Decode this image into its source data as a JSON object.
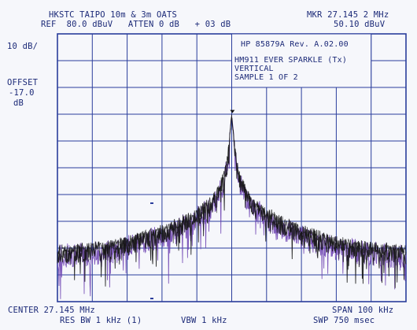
{
  "header": {
    "title": "HKSTC TAIPO 10m & 3m OATS",
    "ref_line": "REF  80.0 dBuV   ATTEN 0 dB   + 03 dB",
    "marker_freq": "MKR 27.145 2 MHz",
    "marker_level": "50.10 dBuV"
  },
  "left_panel": {
    "scale": "10 dB/",
    "offset_label": "OFFSET",
    "offset_value": "-17.0",
    "offset_unit": "dB"
  },
  "info_box": {
    "model": "HP 85879A Rev. A.02.00",
    "line1": "HM911 EVER SPARKLE (Tx)",
    "line2": "VERTICAL",
    "line3": "SAMPLE 1 OF 2"
  },
  "footer": {
    "center": "CENTER 27.145 MHz",
    "span": "SPAN 100 kHz",
    "res_bw": "RES BW 1 kHz (1)",
    "vbw": "VBW 1 kHz",
    "sweep": "SWP 750 msec"
  },
  "colors": {
    "grid": "#2a3d9c",
    "trace_dark": "#141414",
    "trace_purple": "#6b3fb0",
    "text": "#1c2a78",
    "background": "#f6f7fb"
  },
  "chart_data": {
    "type": "line",
    "x_center_mhz": 27.145,
    "x_span_khz": 100,
    "xlim_khz": [
      -50,
      50
    ],
    "ylim_dbuv": [
      -20,
      80
    ],
    "y_scale_db_per_div": 10,
    "divisions": {
      "x": 10,
      "y": 10
    },
    "grid": true,
    "marker": {
      "freq_mhz": 27.1452,
      "level_dbuv": 50.1
    },
    "series": [
      {
        "values": [
          [
            -50,
            1
          ],
          [
            -45,
            1.5
          ],
          [
            -40,
            2
          ],
          [
            -35,
            3
          ],
          [
            -30,
            4.5
          ],
          [
            -25,
            6.5
          ],
          [
            -20,
            8.5
          ],
          [
            -15,
            11.5
          ],
          [
            -10,
            15
          ],
          [
            -6,
            19
          ],
          [
            -4,
            23
          ],
          [
            -2.5,
            28
          ],
          [
            -1.5,
            33
          ],
          [
            -0.8,
            40
          ],
          [
            -0.3,
            46
          ],
          [
            0,
            50.1
          ],
          [
            0.3,
            46
          ],
          [
            0.8,
            40
          ],
          [
            1.5,
            33
          ],
          [
            2.5,
            28
          ],
          [
            4,
            23
          ],
          [
            6,
            19
          ],
          [
            10,
            15
          ],
          [
            15,
            11.5
          ],
          [
            20,
            8.5
          ],
          [
            25,
            6.5
          ],
          [
            30,
            4.5
          ],
          [
            35,
            3
          ],
          [
            40,
            2
          ],
          [
            45,
            1.5
          ],
          [
            50,
            1
          ]
        ]
      }
    ]
  }
}
